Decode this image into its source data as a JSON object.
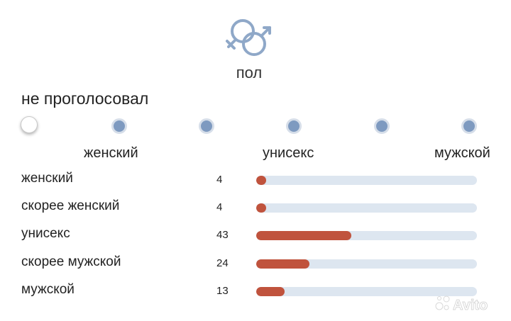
{
  "header": {
    "icon": "gender-symbols-icon",
    "title": "пол"
  },
  "vote_status": "не проголосовал",
  "scale": {
    "options": 6,
    "selected_index": 0,
    "labels": {
      "left": "женский",
      "center": "унисекс",
      "right": "мужской"
    }
  },
  "results": {
    "max": 100,
    "rows": [
      {
        "label": "женский",
        "count": 4
      },
      {
        "label": "скорее женский",
        "count": 4
      },
      {
        "label": "унисекс",
        "count": 43
      },
      {
        "label": "скорее мужской",
        "count": 24
      },
      {
        "label": "мужской",
        "count": 13
      }
    ]
  },
  "watermark": "Avito",
  "colors": {
    "bar_fill": "#c0533d",
    "bar_track": "#dde6f0",
    "radio": "#7e9ac0",
    "icon": "#8fa8c8"
  }
}
